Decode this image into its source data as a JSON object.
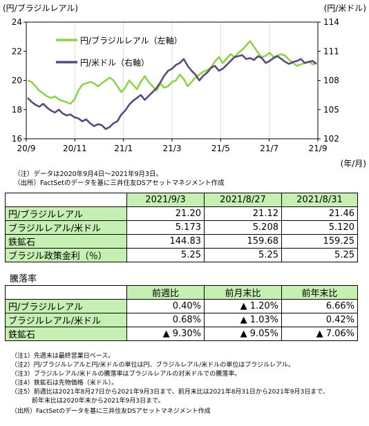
{
  "chart_data": {
    "type": "line",
    "left_axis_title": "(円/ブラジルレアル)",
    "right_axis_title": "(円/米ドル)",
    "x_unit": "(年/月)",
    "x_ticks": [
      "20/9",
      "20/11",
      "21/1",
      "21/3",
      "21/5",
      "21/7",
      "21/9"
    ],
    "ylim_left": [
      16,
      24
    ],
    "yticks_left": [
      16,
      18,
      20,
      22,
      24
    ],
    "ylim_right": [
      102,
      114
    ],
    "yticks_right": [
      102,
      105,
      108,
      111,
      114
    ],
    "series": [
      {
        "name": "円/ブラジルレアル（左軸）",
        "axis": "left",
        "color": "#8dd24a",
        "values": [
          20.0,
          19.9,
          19.6,
          19.3,
          19.1,
          18.9,
          18.8,
          18.9,
          18.7,
          18.6,
          18.5,
          18.4,
          18.7,
          19.3,
          19.7,
          19.8,
          19.9,
          19.8,
          19.6,
          19.8,
          20.0,
          20.2,
          20.0,
          19.6,
          19.2,
          19.5,
          20.0,
          19.7,
          19.4,
          19.9,
          20.3,
          19.9,
          19.6,
          19.3,
          19.8,
          19.5,
          19.6,
          19.9,
          20.0,
          20.4,
          20.1,
          19.6,
          19.9,
          20.2,
          20.4,
          20.6,
          20.7,
          20.9,
          21.3,
          21.6,
          21.2,
          21.5,
          21.8,
          21.6,
          21.9,
          22.1,
          22.4,
          22.7,
          22.3,
          21.9,
          21.6,
          21.7,
          21.9,
          21.6,
          21.7,
          21.8,
          21.7,
          21.4,
          21.2,
          21.0,
          21.1,
          21.2,
          21.3,
          21.1,
          21.2
        ]
      },
      {
        "name": "円/米ドル（右軸）",
        "axis": "right",
        "color": "#5a4a7a",
        "values": [
          106.2,
          105.8,
          105.5,
          105.3,
          105.6,
          105.2,
          104.9,
          104.7,
          105.0,
          104.6,
          104.4,
          104.5,
          104.2,
          104.1,
          103.8,
          104.0,
          103.6,
          103.3,
          103.5,
          103.4,
          103.0,
          103.2,
          103.6,
          103.8,
          104.5,
          104.9,
          105.5,
          105.9,
          106.2,
          106.5,
          106.0,
          106.4,
          106.8,
          107.2,
          107.8,
          108.5,
          109.0,
          109.2,
          109.6,
          109.8,
          110.2,
          109.5,
          109.0,
          108.6,
          108.0,
          108.5,
          108.8,
          109.3,
          109.5,
          109.0,
          109.2,
          109.6,
          110.0,
          110.4,
          110.5,
          110.6,
          110.2,
          110.3,
          110.1,
          110.5,
          110.3,
          109.8,
          110.0,
          110.3,
          110.5,
          110.2,
          109.9,
          109.7,
          109.9,
          110.0,
          110.2,
          109.8,
          109.9,
          110.0,
          109.7
        ]
      }
    ]
  },
  "chart_notes": [
    "（注）データは2020年9月4日～2021年9月3日。",
    "（出所）FactSetのデータを基に三井住友DSアセットマネジメント作成"
  ],
  "table1": {
    "headers": [
      "2021/9/3",
      "2021/8/27",
      "2021/8/31"
    ],
    "rows": [
      {
        "label": "円/ブラジルレアル",
        "values": [
          "21.20",
          "21.12",
          "21.46"
        ]
      },
      {
        "label": "ブラジルレアル/米ドル",
        "values": [
          "5.173",
          "5.208",
          "5.120"
        ]
      },
      {
        "label": "鉄鉱石",
        "values": [
          "144.83",
          "159.68",
          "159.25"
        ]
      },
      {
        "label": "ブラジル政策金利（％）",
        "values": [
          "5.25",
          "5.25",
          "5.25"
        ]
      }
    ]
  },
  "table2": {
    "title": "騰落率",
    "headers": [
      "前週比",
      "前月末比",
      "前年末比"
    ],
    "rows": [
      {
        "label": "円/ブラジルレアル",
        "values": [
          "0.40%",
          "▲ 1.20%",
          "6.66%"
        ]
      },
      {
        "label": "ブラジルレアル/米ドル",
        "values": [
          "0.68%",
          "▲ 1.03%",
          "0.42%"
        ]
      },
      {
        "label": "鉄鉱石",
        "values": [
          "▲ 9.30%",
          "▲ 9.05%",
          "▲ 7.06%"
        ]
      }
    ]
  },
  "footnotes": [
    "（注1）先週末は最終営業日ベース。",
    "（注2）円/ブラジルレアルと円/米ドルの単位は円、ブラジルレアル/米ドルの単位はブラジルレアル。",
    "（注3）ブラジルレアル/米ドルの騰落率はブラジルレアルの対米ドルでの騰落率。",
    "（注4）鉄鉱石は先物価格（米ドル）。",
    "（注5）前週比は2021年8月27日から2021年9月3日まで、前月末比は2021年8月31日から2021年9月3日まで、",
    "　　　 前年末比は2020年末から2021年9月3日まで。",
    "（出所）FactSetのデータを基に三井住友DSアセットマネジメント作成"
  ]
}
